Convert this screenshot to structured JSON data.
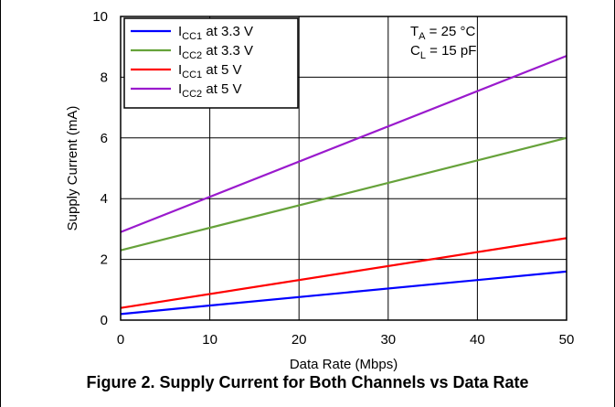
{
  "caption": "Figure 2. Supply Current for Both Channels vs Data Rate",
  "chart_data": {
    "type": "line",
    "xlabel": "Data Rate (Mbps)",
    "ylabel": "Supply Current (mA)",
    "xlim": [
      0,
      50
    ],
    "ylim": [
      0,
      10
    ],
    "xticks": [
      0,
      10,
      20,
      30,
      40,
      50
    ],
    "yticks": [
      0,
      2,
      4,
      6,
      8,
      10
    ],
    "grid": true,
    "legend_position": "top-left",
    "annotations": [
      {
        "main": "T",
        "sub": "A",
        "rest": " = 25 °C"
      },
      {
        "main": "C",
        "sub": "L",
        "rest": " = 15 pF"
      }
    ],
    "series": [
      {
        "name": "ICC1 at 3.3 V",
        "label_main": "I",
        "label_sub": "CC1",
        "label_rest": " at 3.3 V",
        "color": "#0000ff",
        "x": [
          0,
          50
        ],
        "y": [
          0.2,
          1.6
        ]
      },
      {
        "name": "ICC2 at 3.3 V",
        "label_main": "I",
        "label_sub": "CC2",
        "label_rest": " at 3.3 V",
        "color": "#66a23a",
        "x": [
          0,
          50
        ],
        "y": [
          2.3,
          6.0
        ]
      },
      {
        "name": "ICC1 at 5 V",
        "label_main": "I",
        "label_sub": "CC1",
        "label_rest": " at 5 V",
        "color": "#ff0000",
        "x": [
          0,
          50
        ],
        "y": [
          0.4,
          2.7
        ]
      },
      {
        "name": "ICC2 at 5 V",
        "label_main": "I",
        "label_sub": "CC2",
        "label_rest": " at 5 V",
        "color": "#9a1acd",
        "x": [
          0,
          50
        ],
        "y": [
          2.9,
          8.7
        ]
      }
    ]
  }
}
